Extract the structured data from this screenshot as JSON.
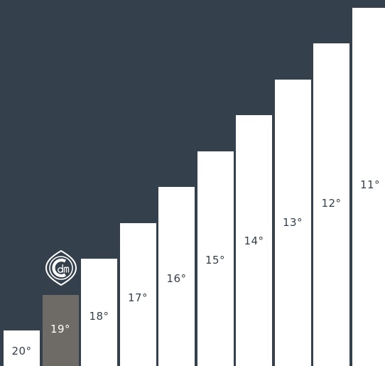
{
  "steps": [
    {
      "label": "20°",
      "level": 1,
      "highlight": false
    },
    {
      "label": "19°",
      "level": 2,
      "highlight": true
    },
    {
      "label": "18°",
      "level": 3,
      "highlight": false
    },
    {
      "label": "17°",
      "level": 4,
      "highlight": false
    },
    {
      "label": "16°",
      "level": 5,
      "highlight": false
    },
    {
      "label": "15°",
      "level": 6,
      "highlight": false
    },
    {
      "label": "14°",
      "level": 7,
      "highlight": false
    },
    {
      "label": "13°",
      "level": 8,
      "highlight": false
    },
    {
      "label": "12°",
      "level": 9,
      "highlight": false
    },
    {
      "label": "11°",
      "level": 10,
      "highlight": false
    }
  ],
  "colors": {
    "background": "#34404b",
    "step": "#ffffff",
    "highlight": "#6e6a66",
    "label": "#34404b"
  },
  "logo": {
    "icon": "cdm-monogram-icon",
    "text": "cdm"
  }
}
